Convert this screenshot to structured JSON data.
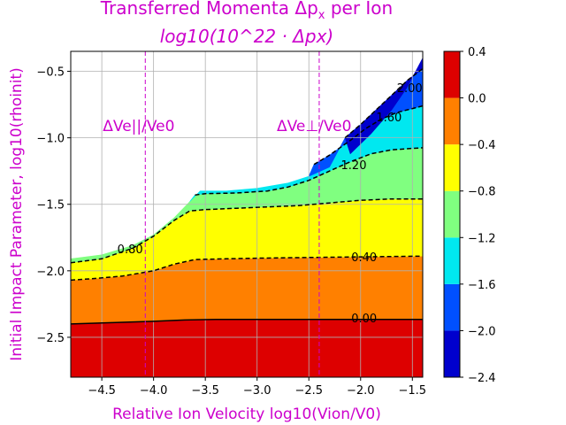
{
  "chart_data": {
    "type": "filled-contour",
    "title_line1": "Transferred Momenta Δp",
    "title_line1_sub": "x",
    "title_line1_suffix": " per Ion",
    "title_line2": "log10(10^22 · Δpx)",
    "xlabel": "Relative Ion Velocity  log10(Vion/V0)",
    "ylabel": "Initial Impact Parameter, log10(rhoinit)",
    "xlim": [
      -4.8,
      -1.4
    ],
    "ylim": [
      -2.8,
      -0.35
    ],
    "xticks": [
      -4.5,
      -4.0,
      -3.5,
      -3.0,
      -2.5,
      -2.0,
      -1.5
    ],
    "xtick_labels": [
      "−4.5",
      "−4.0",
      "−3.5",
      "−3.0",
      "−2.5",
      "−2.0",
      "−1.5"
    ],
    "yticks": [
      -2.5,
      -2.0,
      -1.5,
      -1.0,
      -0.5
    ],
    "ytick_labels": [
      "−2.5",
      "−2.0",
      "−1.5",
      "−1.0",
      "−0.5"
    ],
    "grid": true,
    "vlines": [
      {
        "x": -4.08,
        "label": "ΔVe||/Ve0",
        "style": "dashed",
        "color": "#cc00cc"
      },
      {
        "x": -2.4,
        "label": "ΔVe⊥/Ve0",
        "style": "dashed",
        "color": "#cc00cc"
      }
    ],
    "colorbar": {
      "levels": [
        -2.4,
        -2.0,
        -1.6,
        -1.2,
        -0.8,
        -0.4,
        0.0,
        0.4
      ],
      "tick_labels": [
        "−2.4",
        "−2.0",
        "−1.6",
        "−1.2",
        "−0.8",
        "−0.4",
        "0.0",
        "0.4"
      ],
      "colors": [
        "#0000cd",
        "#0050ff",
        "#00e8f0",
        "#80ff80",
        "#ffff00",
        "#ff8000",
        "#dd0000"
      ]
    },
    "bands": [
      {
        "range": [
          0.0,
          0.4
        ],
        "color": "#dd0000"
      },
      {
        "range": [
          -0.4,
          0.0
        ],
        "color": "#ff8000"
      },
      {
        "range": [
          -0.8,
          -0.4
        ],
        "color": "#ffff00"
      },
      {
        "range": [
          -1.2,
          -0.8
        ],
        "color": "#80ff80"
      },
      {
        "range": [
          -1.6,
          -1.2
        ],
        "color": "#00e8f0"
      },
      {
        "range": [
          -2.0,
          -1.6
        ],
        "color": "#0050ff"
      },
      {
        "range": [
          -2.4,
          -2.0
        ],
        "color": "#0000cd"
      }
    ],
    "region_bottom_y": -2.8,
    "boundaries": [
      {
        "level": 0.0,
        "x": [
          -4.8,
          -4.4,
          -4.0,
          -3.7,
          -3.4,
          -3.0,
          -2.5,
          -2.0,
          -1.4
        ],
        "y": [
          -2.4,
          -2.39,
          -2.38,
          -2.37,
          -2.365,
          -2.365,
          -2.365,
          -2.365,
          -2.365
        ]
      },
      {
        "level": -0.4,
        "x": [
          -4.8,
          -4.6,
          -4.3,
          -4.0,
          -3.8,
          -3.6,
          -3.3,
          -3.0,
          -2.5,
          -2.0,
          -1.4
        ],
        "y": [
          -2.07,
          -2.06,
          -2.04,
          -2.0,
          -1.95,
          -1.915,
          -1.91,
          -1.905,
          -1.9,
          -1.895,
          -1.89
        ]
      },
      {
        "level": -0.8,
        "x": [
          -4.8,
          -4.5,
          -4.2,
          -4.0,
          -3.8,
          -3.65,
          -3.5,
          -3.2,
          -2.9,
          -2.6,
          -2.3,
          -2.0,
          -1.7,
          -1.4
        ],
        "y": [
          -1.94,
          -1.91,
          -1.83,
          -1.74,
          -1.62,
          -1.55,
          -1.54,
          -1.53,
          -1.52,
          -1.51,
          -1.49,
          -1.47,
          -1.46,
          -1.46
        ]
      },
      {
        "level": -1.2,
        "x": [
          -3.6,
          -3.5,
          -3.2,
          -2.9,
          -2.7,
          -2.5,
          -2.3,
          -2.1,
          -1.9,
          -1.7,
          -1.5,
          -1.4
        ],
        "y": [
          -1.43,
          -1.42,
          -1.415,
          -1.4,
          -1.37,
          -1.32,
          -1.25,
          -1.18,
          -1.12,
          -1.09,
          -1.08,
          -1.075
        ]
      },
      {
        "level": -1.6,
        "x": [
          -2.45,
          -2.3,
          -2.1,
          -1.95,
          -1.8,
          -1.65,
          -1.5,
          -1.4
        ],
        "y": [
          -1.2,
          -1.13,
          -1.02,
          -0.93,
          -0.86,
          -0.81,
          -0.78,
          -0.76
        ]
      },
      {
        "level": -2.0,
        "x": [
          -2.15,
          -2.0,
          -1.85,
          -1.7,
          -1.55,
          -1.4
        ],
        "y": [
          -1.0,
          -0.9,
          -0.79,
          -0.68,
          -0.57,
          -0.48
        ]
      }
    ],
    "envelope": {
      "x": [
        -4.8,
        -4.5,
        -4.2,
        -4.0,
        -3.8,
        -3.65,
        -3.55,
        -3.3,
        -3.0,
        -2.7,
        -2.5,
        -2.3,
        -2.1,
        -1.9,
        -1.7,
        -1.55,
        -1.4
      ],
      "y": [
        -1.91,
        -1.88,
        -1.81,
        -1.73,
        -1.6,
        -1.48,
        -1.4,
        -1.4,
        -1.38,
        -1.34,
        -1.29,
        -1.22,
        -1.12,
        -0.97,
        -0.79,
        -0.62,
        -0.4
      ]
    },
    "contour_labels": [
      {
        "text": "0.00",
        "x": -2.09,
        "y": -2.36
      },
      {
        "text": "0.40",
        "x": -2.09,
        "y": -1.9
      },
      {
        "text": "0.80",
        "x": -4.35,
        "y": -1.84
      },
      {
        "text": "1.20",
        "x": -2.19,
        "y": -1.21
      },
      {
        "text": "1.60",
        "x": -1.85,
        "y": -0.85
      },
      {
        "text": "2.00",
        "x": -1.65,
        "y": -0.63
      }
    ]
  }
}
